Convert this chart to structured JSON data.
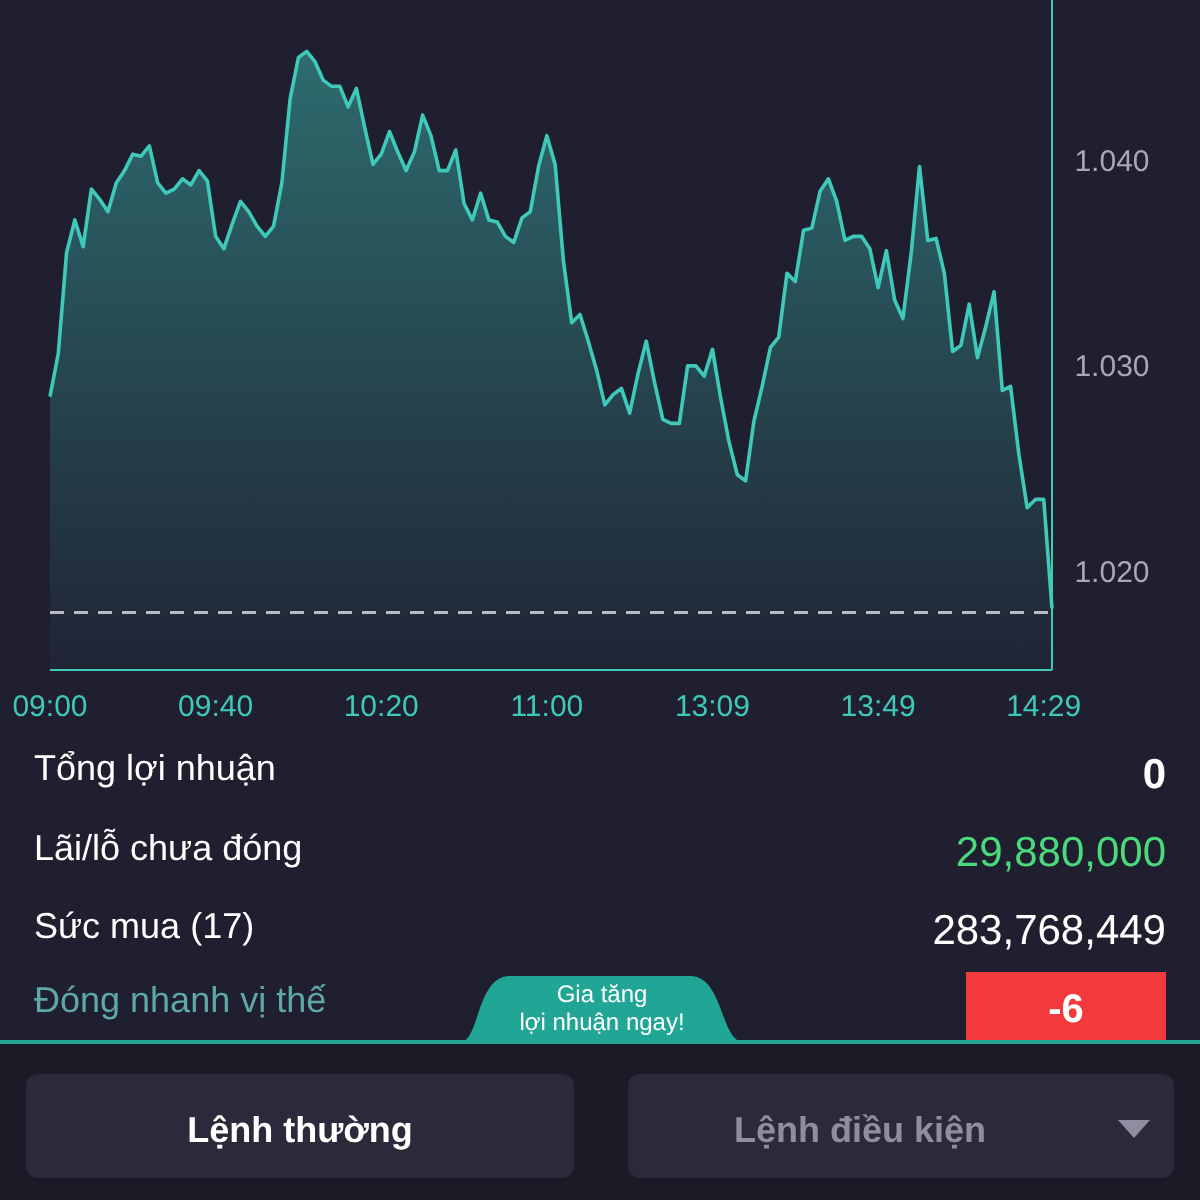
{
  "chart_data": [
    {
      "type": "area",
      "categories": [
        "09:00",
        null,
        null,
        null,
        null,
        null,
        null,
        null,
        null,
        null,
        null,
        null,
        null,
        null,
        null,
        null,
        null,
        null,
        null,
        null,
        "09:40",
        null,
        null,
        null,
        null,
        null,
        null,
        null,
        null,
        null,
        null,
        null,
        null,
        null,
        null,
        null,
        null,
        null,
        null,
        null,
        "10:20",
        null,
        null,
        null,
        null,
        null,
        null,
        null,
        null,
        null,
        null,
        null,
        null,
        null,
        null,
        null,
        null,
        null,
        null,
        null,
        "11:00",
        null,
        null,
        null,
        null,
        null,
        null,
        null,
        null,
        null,
        null,
        null,
        null,
        null,
        null,
        null,
        null,
        null,
        null,
        null,
        "13:09",
        null,
        null,
        null,
        null,
        null,
        null,
        null,
        null,
        null,
        null,
        null,
        null,
        null,
        null,
        null,
        null,
        null,
        null,
        null,
        "13:49",
        null,
        null,
        null,
        null,
        null,
        null,
        null,
        null,
        null,
        null,
        null,
        null,
        null,
        null,
        null,
        null,
        null,
        null,
        null,
        "14:29",
        null
      ],
      "series": [
        {
          "color": "#3ec9b9",
          "values": [
            1.0285,
            1.0306,
            1.0355,
            1.0371,
            1.0358,
            1.0386,
            1.0381,
            1.0375,
            1.0389,
            1.0395,
            1.0403,
            1.0402,
            1.0407,
            1.0389,
            1.0384,
            1.0386,
            1.0391,
            1.0388,
            1.0395,
            1.039,
            1.0363,
            1.0357,
            1.0369,
            1.038,
            1.0375,
            1.0368,
            1.0363,
            1.0368,
            1.0389,
            1.043,
            1.045,
            1.0453,
            1.0448,
            1.0439,
            1.0436,
            1.0436,
            1.0426,
            1.0435,
            1.0416,
            1.0398,
            1.0403,
            1.0414,
            1.0404,
            1.0395,
            1.0404,
            1.0422,
            1.0412,
            1.0395,
            1.0395,
            1.0405,
            1.0379,
            1.0371,
            1.0384,
            1.0371,
            1.037,
            1.0363,
            1.036,
            1.0372,
            1.0375,
            1.0397,
            1.0412,
            1.0398,
            1.0351,
            1.0321,
            1.0325,
            1.0312,
            1.0298,
            1.0281,
            1.0286,
            1.0289,
            1.0277,
            1.0296,
            1.0312,
            1.0292,
            1.0274,
            1.0272,
            1.0272,
            1.03,
            1.03,
            1.0295,
            1.0308,
            1.0284,
            1.0263,
            1.0247,
            1.0244,
            1.0273,
            1.029,
            1.0309,
            1.0314,
            1.0345,
            1.0341,
            1.0366,
            1.0367,
            1.0385,
            1.0391,
            1.038,
            1.0361,
            1.0363,
            1.0363,
            1.0357,
            1.0338,
            1.0356,
            1.0332,
            1.0323,
            1.0355,
            1.0397,
            1.0361,
            1.0362,
            1.0345,
            1.0307,
            1.031,
            1.033,
            1.0304,
            1.0319,
            1.0336,
            1.0288,
            1.029,
            1.0257,
            1.0231,
            1.0235,
            1.0235,
            1.0182
          ]
        }
      ],
      "ylim": [
        1.0152,
        1.0478
      ],
      "yticks": [
        {
          "value": 1.02,
          "label": "1.020"
        },
        {
          "value": 1.03,
          "label": "1.030"
        },
        {
          "value": 1.04,
          "label": "1.040"
        }
      ],
      "ref_lines": [
        {
          "axis": "y",
          "value": 1.018,
          "color": "#b8b8c0",
          "line_style": "dashed"
        }
      ],
      "grid": false,
      "marker": "none",
      "line_style": "solid"
    },
    {
      "type": "other",
      "annotations": [
        "Tổng lợi nhuận",
        "0",
        "Lãi/lỗ chưa đóng",
        "29,880,000",
        "Sức mua (17)",
        "283,768,449",
        "Đóng nhanh vị thế",
        "Gia tăng lợi nhuận ngay!",
        "-6",
        "Lệnh thường",
        "Lệnh điều kiện"
      ]
    }
  ]
}
